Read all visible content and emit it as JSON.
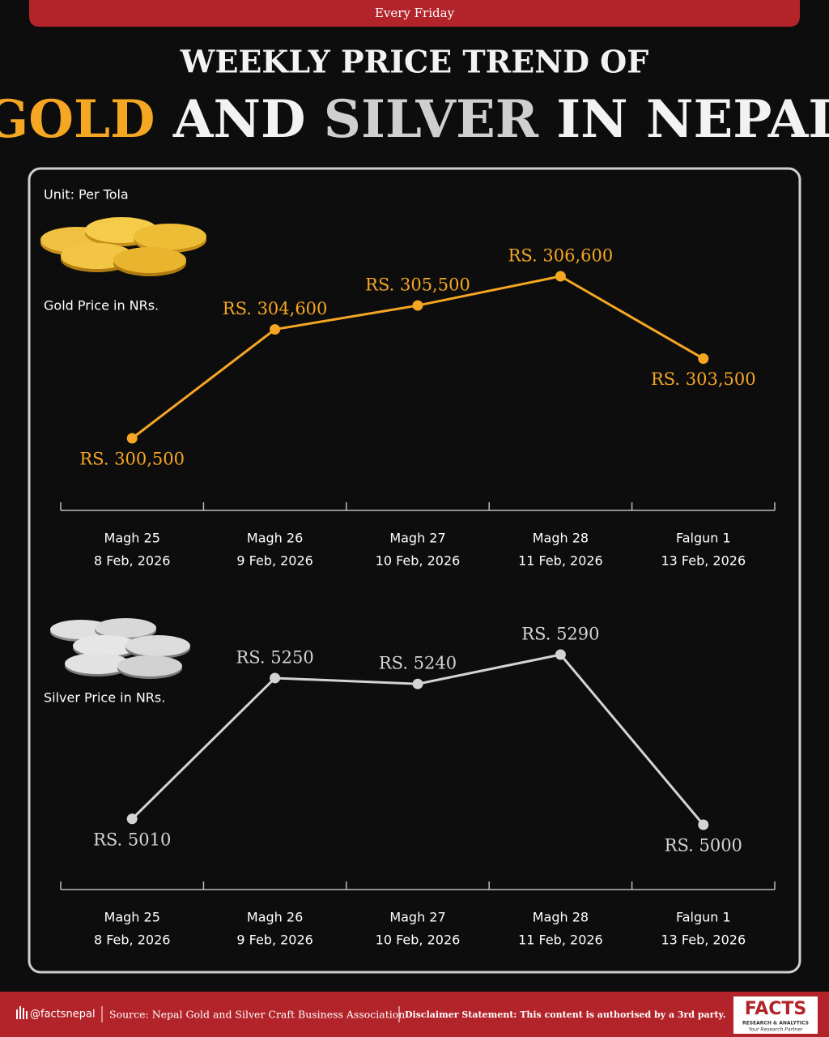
{
  "header": {
    "banner": "Every Friday",
    "title_line1": "WEEKLY PRICE TREND OF",
    "title_gold": "GOLD",
    "title_and": "AND",
    "title_silver": "SILVER",
    "title_rest": "IN NEPAL"
  },
  "unit": "Unit: Per Tola",
  "chart_data": [
    {
      "type": "line",
      "categories": [
        [
          "Magh 25",
          "8 Feb, 2026"
        ],
        [
          "Magh 26",
          "9 Feb, 2026"
        ],
        [
          "Magh 27",
          "10 Feb, 2026"
        ],
        [
          "Magh 28",
          "11 Feb, 2026"
        ],
        [
          "Falgun 1",
          "13 Feb, 2026"
        ]
      ],
      "series": [
        {
          "name": "Gold Price in NRs.",
          "color": "#f5a623",
          "values": [
            300500,
            304600,
            305500,
            306600,
            303500
          ],
          "value_labels": [
            "RS. 300,500",
            "RS. 304,600",
            "RS. 305,500",
            "RS. 306,600",
            "RS. 303,500"
          ]
        }
      ]
    },
    {
      "type": "line",
      "categories": [
        [
          "Magh 25",
          "8 Feb, 2026"
        ],
        [
          "Magh 26",
          "9 Feb, 2026"
        ],
        [
          "Magh 27",
          "10 Feb, 2026"
        ],
        [
          "Magh 28",
          "11 Feb, 2026"
        ],
        [
          "Falgun 1",
          "13 Feb, 2026"
        ]
      ],
      "series": [
        {
          "name": "Silver Price in NRs.",
          "color": "#d4d4d4",
          "values": [
            5010,
            5250,
            5240,
            5290,
            5000
          ],
          "value_labels": [
            "RS. 5010",
            "RS. 5250",
            "RS. 5240",
            "RS. 5290",
            "RS. 5000"
          ]
        }
      ]
    }
  ],
  "footer": {
    "handle": "@factsnepal",
    "source": "Source: Nepal Gold and Silver Craft Business Association",
    "disclaimer": "Disclaimer Statement: This content is authorised by a 3rd party.",
    "logo": "FACTS",
    "logo_sub": "RESEARCH & ANALYTICS",
    "logo_tag": "Your Research Partner"
  }
}
